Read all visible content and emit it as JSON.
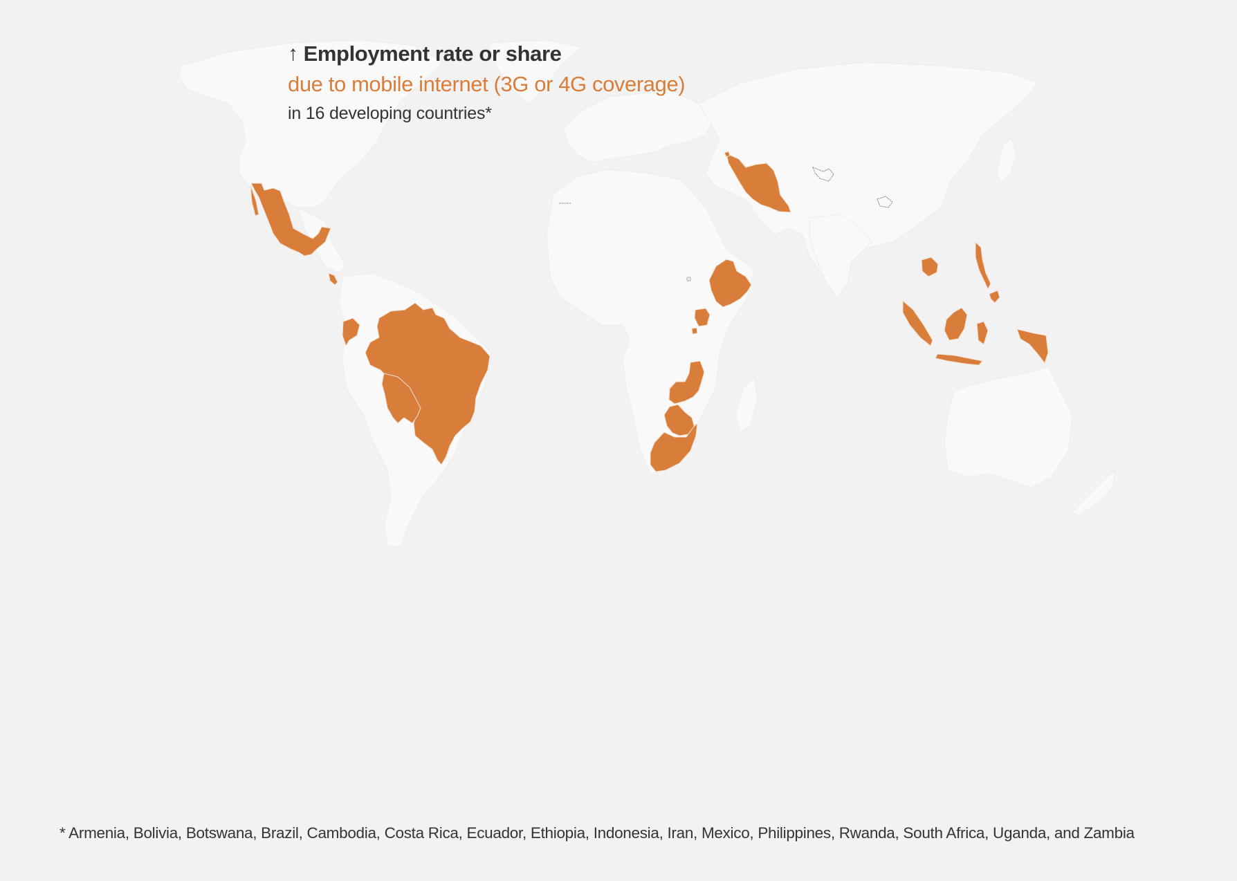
{
  "title": {
    "arrow_icon": "up-arrow-icon",
    "main": "Employment rate or share",
    "subtitle": "due to mobile internet (3G or 4G coverage)",
    "context": "in 16 developing countries*"
  },
  "footnote": "* Armenia, Bolivia, Botswana, Brazil, Cambodia, Costa Rica, Ecuador, Ethiopia, Indonesia, Iran, Mexico, Philippines, Rwanda, South Africa, Uganda, and Zambia",
  "colors": {
    "background": "#f2f2f2",
    "land": "#f9f9f9",
    "land_border": "#ececec",
    "highlight": "#d97d3a",
    "text": "#333333"
  },
  "map": {
    "highlighted_countries": [
      "Armenia",
      "Bolivia",
      "Botswana",
      "Brazil",
      "Cambodia",
      "Costa Rica",
      "Ecuador",
      "Ethiopia",
      "Indonesia",
      "Iran",
      "Mexico",
      "Philippines",
      "Rwanda",
      "South Africa",
      "Uganda",
      "Zambia"
    ]
  }
}
